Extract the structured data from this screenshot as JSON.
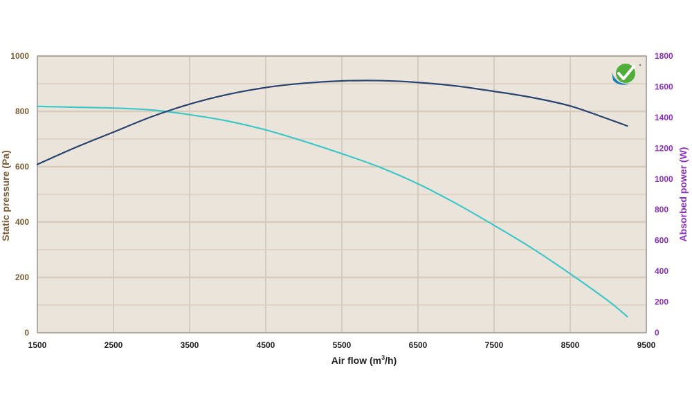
{
  "colors": {
    "plot_bg": "#ebe4da",
    "grid": "#d6cbbd",
    "left_axis": "#7a5c36",
    "right_axis": "#8a2fc0",
    "x_text": "#222222",
    "series_pressure": "#3cc8c8",
    "series_power": "#25436e"
  },
  "logo_icon": "checkmark-logo-icon",
  "chart_data": {
    "type": "line",
    "xlabel_parts": {
      "base": "Air flow (m",
      "sup": "3",
      "tail": "/h)"
    },
    "ylabel_left": "Static pressure (Pa)",
    "ylabel_right": "Absorbed power (W)",
    "xlim": [
      1500,
      9500
    ],
    "ylim_left": [
      0,
      1000
    ],
    "ylim_right": [
      0,
      1800
    ],
    "x_ticks": [
      "1500",
      "2500",
      "3500",
      "4500",
      "5500",
      "6500",
      "7500",
      "8500",
      "9500"
    ],
    "y_left_ticks": [
      "0",
      "200",
      "400",
      "600",
      "800",
      "1000"
    ],
    "y_right_ticks": [
      "0",
      "200",
      "400",
      "600",
      "800",
      "1000",
      "1200",
      "1400",
      "1600",
      "1800"
    ],
    "grid": true,
    "series": [
      {
        "axis": "left",
        "points": [
          [
            1500,
            818
          ],
          [
            2000,
            815
          ],
          [
            2500,
            812
          ],
          [
            3000,
            805
          ],
          [
            3500,
            788
          ],
          [
            4000,
            765
          ],
          [
            4500,
            733
          ],
          [
            5000,
            692
          ],
          [
            5500,
            647
          ],
          [
            6000,
            598
          ],
          [
            6500,
            538
          ],
          [
            7000,
            467
          ],
          [
            7500,
            388
          ],
          [
            8000,
            305
          ],
          [
            8500,
            213
          ],
          [
            9000,
            115
          ],
          [
            9250,
            58
          ]
        ]
      },
      {
        "axis": "right",
        "points": [
          [
            1500,
            1095
          ],
          [
            2000,
            1205
          ],
          [
            2500,
            1305
          ],
          [
            3000,
            1405
          ],
          [
            3500,
            1487
          ],
          [
            4000,
            1550
          ],
          [
            4500,
            1595
          ],
          [
            5000,
            1623
          ],
          [
            5500,
            1638
          ],
          [
            6000,
            1640
          ],
          [
            6500,
            1628
          ],
          [
            7000,
            1605
          ],
          [
            7500,
            1570
          ],
          [
            8000,
            1530
          ],
          [
            8500,
            1475
          ],
          [
            9000,
            1390
          ],
          [
            9250,
            1345
          ]
        ]
      }
    ]
  }
}
